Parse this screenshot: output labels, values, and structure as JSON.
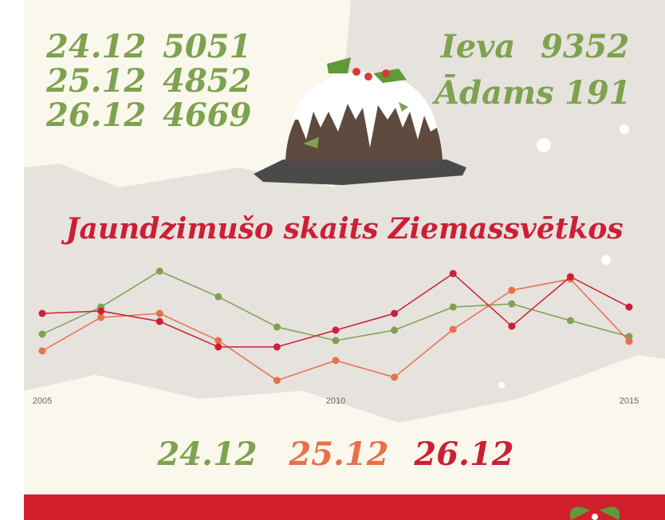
{
  "stats": [
    {
      "date": "24.12",
      "count": "5051"
    },
    {
      "date": "25.12",
      "count": "4852"
    },
    {
      "date": "26.12",
      "count": "4669"
    }
  ],
  "names": [
    {
      "name": "Ieva",
      "count": "9352"
    },
    {
      "name": "Ādams",
      "count": "191"
    }
  ],
  "chart_data": {
    "type": "line",
    "title": "Jaundzimušo skaits Ziemassvētkos",
    "x": [
      2005,
      2006,
      2007,
      2008,
      2009,
      2010,
      2011,
      2012,
      2013,
      2014,
      2015
    ],
    "xlim": [
      2005,
      2015
    ],
    "xticks": [
      2005,
      2010,
      2015
    ],
    "ylim": [
      400,
      580
    ],
    "series": [
      {
        "name": "24.12",
        "color": "#7ea24f",
        "values": [
          481,
          515,
          560,
          528,
          490,
          473,
          486,
          515,
          519,
          498,
          478
        ]
      },
      {
        "name": "25.12",
        "color": "#e8704c",
        "values": [
          460,
          502,
          507,
          473,
          423,
          448,
          427,
          487,
          536,
          550,
          472
        ]
      },
      {
        "name": "26.12",
        "color": "#cc1f36",
        "values": [
          507,
          510,
          497,
          465,
          465,
          486,
          507,
          557,
          491,
          553,
          515
        ]
      }
    ]
  }
}
